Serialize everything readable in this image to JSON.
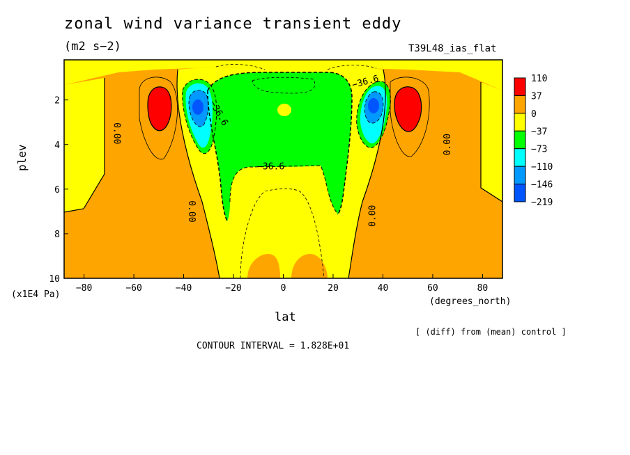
{
  "chart_data": {
    "type": "heatmap",
    "title": "zonal wind variance transient eddy",
    "units": "(m2 s−2)",
    "run_label": "T39L48_ias_flat",
    "xlabel": "lat",
    "x_units": "(degrees_north)",
    "ylabel": "plev",
    "y_units": "(x1E4 Pa)",
    "xlim": [
      -88,
      88
    ],
    "ylim": [
      10,
      0.2
    ],
    "x_ticks": [
      "−80",
      "−60",
      "−40",
      "−20",
      "0",
      "20",
      "40",
      "60",
      "80"
    ],
    "x_tick_values": [
      -80,
      -60,
      -40,
      -20,
      0,
      20,
      40,
      60,
      80
    ],
    "y_ticks": [
      "2",
      "4",
      "6",
      "8",
      "10"
    ],
    "y_tick_values": [
      2,
      4,
      6,
      8,
      10
    ],
    "colorbar": {
      "levels": [
        "110",
        "37",
        "0",
        "−37",
        "−73",
        "−110",
        "−146",
        "−219"
      ],
      "colors": [
        "#ff0000",
        "#ffa500",
        "#ffff00",
        "#00ff00",
        "#00ffff",
        "#0099ff",
        "#0055ff"
      ]
    },
    "contour_labels": [
      {
        "text": "0.00",
        "lat": -67,
        "plev": 3.5,
        "rot": 90
      },
      {
        "text": "0.00",
        "lat": -37,
        "plev": 7.0,
        "rot": 90
      },
      {
        "text": "0.00",
        "lat": 66,
        "plev": 4.0,
        "rot": -90
      },
      {
        "text": "0.00",
        "lat": 36,
        "plev": 7.2,
        "rot": -90
      },
      {
        "text": "−36.6",
        "lat": -5,
        "plev": 5.0,
        "rot": 0
      },
      {
        "text": "−36.6",
        "lat": -26,
        "plev": 2.6,
        "rot": 60
      },
      {
        "text": "−36.6",
        "lat": 33,
        "plev": 1.2,
        "rot": -15
      }
    ],
    "features": [
      {
        "name": "southern-max",
        "lat": -49,
        "plev": 2.3,
        "value": 110
      },
      {
        "name": "northern-max",
        "lat": 50,
        "plev": 2.3,
        "value": 110
      },
      {
        "name": "southern-min",
        "lat": -34,
        "plev": 2.3,
        "value": -146
      },
      {
        "name": "northern-min",
        "lat": 35,
        "plev": 2.3,
        "value": -146
      }
    ],
    "diff_note": "[ (diff) from (mean) control ]",
    "contour_interval": "CONTOUR INTERVAL = 1.828E+01"
  }
}
